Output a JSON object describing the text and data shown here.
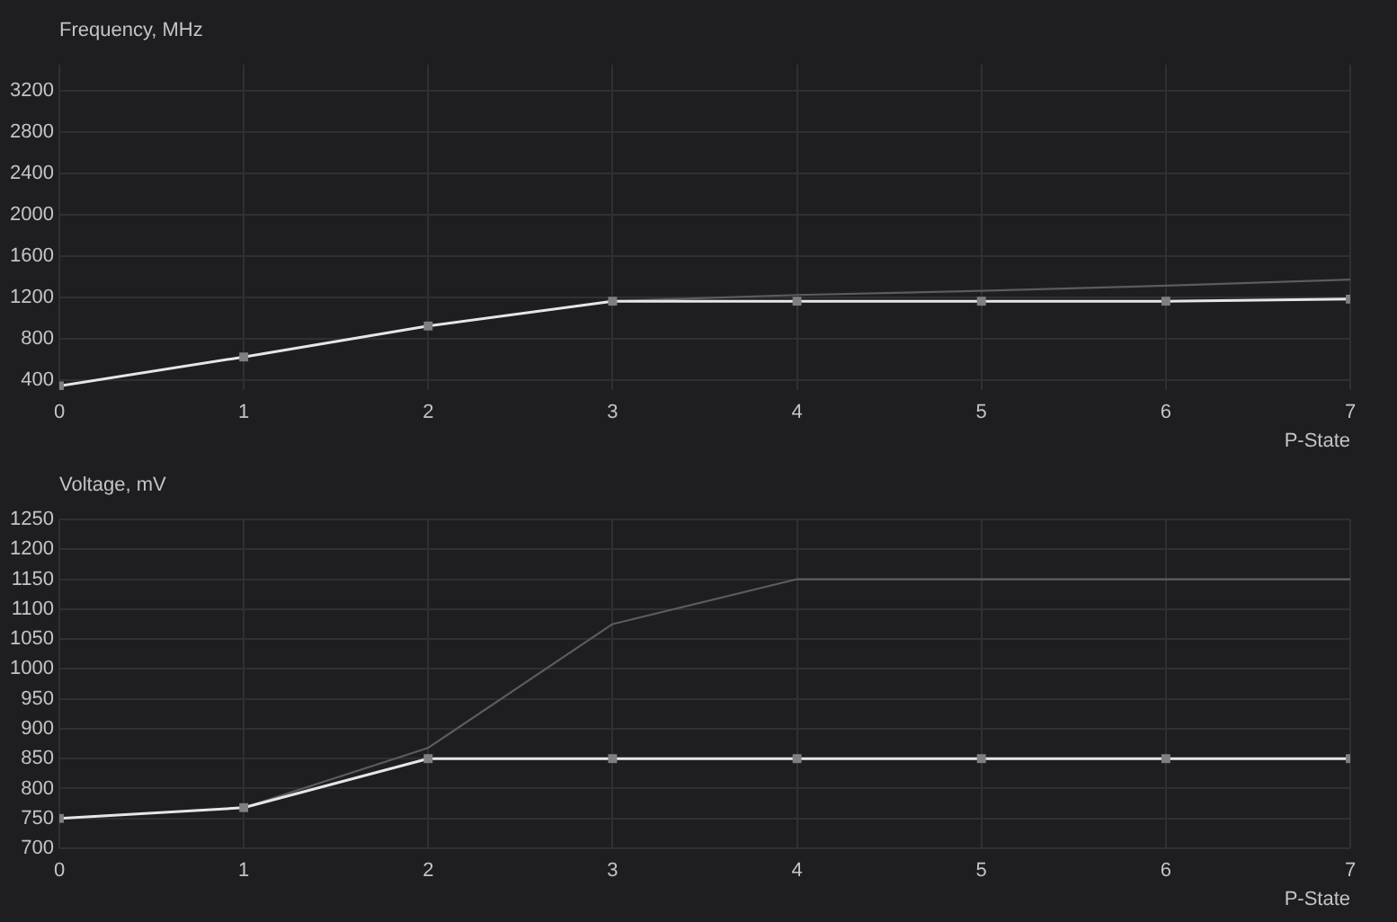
{
  "chart_data": [
    {
      "type": "line",
      "ylabel": "Frequency, MHz",
      "xlabel": "P-State",
      "x": [
        0,
        1,
        2,
        3,
        4,
        5,
        6,
        7
      ],
      "xlim": [
        0,
        7
      ],
      "xticks": [
        0,
        1,
        2,
        3,
        4,
        5,
        6,
        7
      ],
      "ylim": [
        300,
        3450
      ],
      "yticks": [
        400,
        800,
        1200,
        1600,
        2000,
        2400,
        2800,
        3200
      ],
      "grid": true,
      "series": [
        {
          "color": "#5c5c5c",
          "values": [
            null,
            null,
            null,
            1160,
            1220,
            1260,
            1310,
            1370
          ]
        },
        {
          "color": "#e6e6e6",
          "marker": "square",
          "values": [
            340,
            620,
            920,
            1160,
            1160,
            1160,
            1160,
            1180
          ]
        }
      ]
    },
    {
      "type": "line",
      "ylabel": "Voltage, mV",
      "xlabel": "P-State",
      "x": [
        0,
        1,
        2,
        3,
        4,
        5,
        6,
        7
      ],
      "xlim": [
        0,
        7
      ],
      "xticks": [
        0,
        1,
        2,
        3,
        4,
        5,
        6,
        7
      ],
      "ylim": [
        700,
        1250
      ],
      "yticks": [
        700,
        750,
        800,
        850,
        900,
        950,
        1000,
        1050,
        1100,
        1150,
        1200,
        1250
      ],
      "grid": true,
      "series": [
        {
          "color": "#5c5c5c",
          "values": [
            null,
            768,
            868,
            1075,
            1150,
            1150,
            1150,
            1150
          ]
        },
        {
          "color": "#e6e6e6",
          "marker": "square",
          "values": [
            750,
            768,
            850,
            850,
            850,
            850,
            850,
            850
          ]
        }
      ]
    }
  ]
}
